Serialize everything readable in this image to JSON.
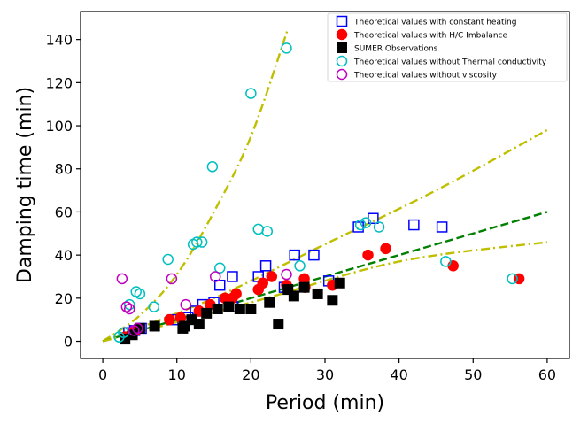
{
  "chart_data": {
    "type": "scatter",
    "title": "",
    "xlabel": "Period (min)",
    "ylabel": "Damping time (min)",
    "xlim": [
      -3,
      63
    ],
    "ylim": [
      -8,
      153
    ],
    "xticks": [
      "0",
      "10",
      "20",
      "30",
      "40",
      "50",
      "60"
    ],
    "yticks": [
      "0",
      "20",
      "40",
      "60",
      "80",
      "100",
      "120",
      "140"
    ],
    "xtick_values": [
      0,
      10,
      20,
      30,
      40,
      50,
      60
    ],
    "ytick_values": [
      0,
      20,
      40,
      60,
      80,
      100,
      120,
      140
    ],
    "grid": false,
    "legend_position": "top-right",
    "series": [
      {
        "name": "Theoretical values with constant heating",
        "marker": "square-open",
        "color": "#0000ff",
        "points": [
          [
            3.5,
            4
          ],
          [
            4.3,
            5
          ],
          [
            5.2,
            6
          ],
          [
            9.5,
            10
          ],
          [
            11.5,
            11
          ],
          [
            12.5,
            14
          ],
          [
            13.5,
            17
          ],
          [
            15,
            18
          ],
          [
            15.8,
            26
          ],
          [
            17.5,
            30
          ],
          [
            17.6,
            16
          ],
          [
            21,
            30
          ],
          [
            22,
            35
          ],
          [
            24.5,
            25
          ],
          [
            25.9,
            40
          ],
          [
            28.5,
            40
          ],
          [
            30.5,
            28
          ],
          [
            34.5,
            53
          ],
          [
            36.5,
            57
          ],
          [
            42,
            54
          ],
          [
            45.8,
            53
          ]
        ]
      },
      {
        "name": "Theoretical values with H/C Imbalance",
        "marker": "circle-filled",
        "color": "#ff0000",
        "points": [
          [
            3,
            2
          ],
          [
            4,
            4
          ],
          [
            4.5,
            5
          ],
          [
            9,
            10
          ],
          [
            10.5,
            11
          ],
          [
            13,
            14
          ],
          [
            14.5,
            17
          ],
          [
            16.5,
            20
          ],
          [
            17.5,
            20
          ],
          [
            18,
            22
          ],
          [
            21,
            24
          ],
          [
            21.6,
            27
          ],
          [
            22.8,
            30
          ],
          [
            24.8,
            26
          ],
          [
            27.2,
            29
          ],
          [
            27.3,
            25
          ],
          [
            31,
            26
          ],
          [
            35.8,
            40
          ],
          [
            38.2,
            43
          ],
          [
            47.3,
            35
          ],
          [
            56.2,
            29
          ]
        ]
      },
      {
        "name": "SUMER Observations",
        "marker": "square-filled",
        "color": "#000000",
        "points": [
          [
            3,
            1
          ],
          [
            4,
            3
          ],
          [
            5,
            6
          ],
          [
            7,
            7
          ],
          [
            10.8,
            6
          ],
          [
            11,
            7
          ],
          [
            12,
            10
          ],
          [
            13,
            8
          ],
          [
            14,
            13
          ],
          [
            15.5,
            15
          ],
          [
            17,
            16
          ],
          [
            18.5,
            15
          ],
          [
            20,
            15
          ],
          [
            22.5,
            18
          ],
          [
            23.7,
            8
          ],
          [
            25,
            24
          ],
          [
            25.8,
            21
          ],
          [
            27.2,
            25
          ],
          [
            29,
            22
          ],
          [
            31,
            19
          ],
          [
            32,
            27
          ]
        ]
      },
      {
        "name": "Theoretical values without Thermal conductivity",
        "marker": "circle-open",
        "color": "#00bfbf",
        "points": [
          [
            2.2,
            2
          ],
          [
            2.8,
            4
          ],
          [
            3.6,
            17
          ],
          [
            4.5,
            23
          ],
          [
            5,
            22
          ],
          [
            6.9,
            16
          ],
          [
            8.8,
            38
          ],
          [
            12.2,
            45
          ],
          [
            12.7,
            46
          ],
          [
            13.4,
            46
          ],
          [
            14.8,
            81
          ],
          [
            15.8,
            34
          ],
          [
            20,
            115
          ],
          [
            21,
            52
          ],
          [
            22.2,
            51
          ],
          [
            24.8,
            136
          ],
          [
            26.6,
            35
          ],
          [
            34.8,
            54
          ],
          [
            35.5,
            55
          ],
          [
            37.3,
            53
          ],
          [
            46.3,
            37
          ],
          [
            55.3,
            29
          ]
        ]
      },
      {
        "name": "Theoretical values without viscosity",
        "marker": "circle-open",
        "color": "#bf00bf",
        "points": [
          [
            2.6,
            29
          ],
          [
            3.2,
            16
          ],
          [
            3.6,
            15
          ],
          [
            4.2,
            5
          ],
          [
            4.7,
            6
          ],
          [
            9.3,
            29
          ],
          [
            11.2,
            17
          ],
          [
            15.2,
            30
          ],
          [
            24.8,
            31
          ]
        ]
      }
    ],
    "fit_lines": [
      {
        "style": "dash-dot",
        "color": "#bfbf00",
        "points": [
          [
            0,
            0
          ],
          [
            5,
            12
          ],
          [
            10,
            31
          ],
          [
            15,
            60
          ],
          [
            20,
            95
          ],
          [
            25,
            145
          ]
        ]
      },
      {
        "style": "dash-dot",
        "color": "#bfbf00",
        "points": [
          [
            0,
            0
          ],
          [
            15,
            20
          ],
          [
            30,
            45
          ],
          [
            45,
            70
          ],
          [
            60,
            98
          ]
        ]
      },
      {
        "style": "dashed",
        "color": "#008000",
        "points": [
          [
            0,
            0
          ],
          [
            60,
            60
          ]
        ]
      },
      {
        "style": "dash-dot",
        "color": "#bfbf00",
        "points": [
          [
            0,
            0
          ],
          [
            20,
            18
          ],
          [
            40,
            37
          ],
          [
            60,
            46
          ]
        ]
      }
    ]
  }
}
